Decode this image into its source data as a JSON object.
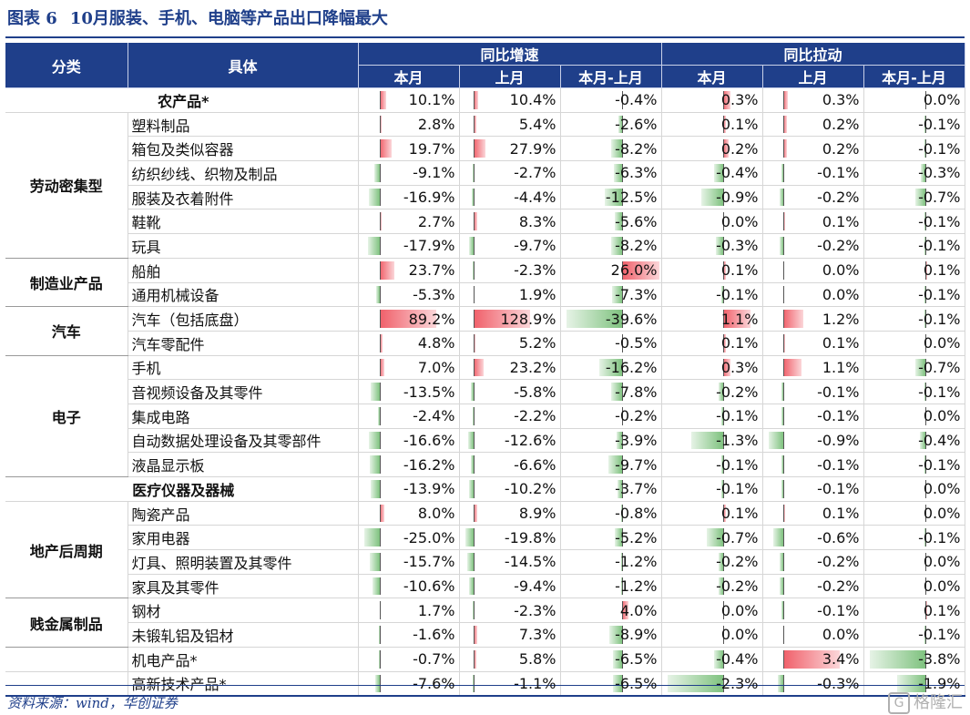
{
  "title": {
    "label": "图表 6",
    "text": "10月服装、手机、电脑等产品出口降幅最大"
  },
  "header": {
    "col_category": "分类",
    "col_item": "具体",
    "group_yoy": "同比增速",
    "group_pull": "同比拉动",
    "sub": [
      "本月",
      "上月",
      "本月-上月",
      "本月",
      "上月",
      "本月-上月"
    ]
  },
  "rows": [
    {
      "cat": "农产品*",
      "item": "",
      "vals": [
        "10.1%",
        "10.4%",
        "-0.4%",
        "0.3%",
        "0.3%",
        "0.0%"
      ]
    },
    {
      "cat": "劳动密集型",
      "item": "塑料制品",
      "vals": [
        "2.8%",
        "5.4%",
        "-2.6%",
        "0.1%",
        "0.2%",
        "-0.1%"
      ]
    },
    {
      "cat": "",
      "item": "箱包及类似容器",
      "vals": [
        "19.7%",
        "27.9%",
        "-8.2%",
        "0.2%",
        "0.2%",
        "-0.1%"
      ]
    },
    {
      "cat": "",
      "item": "纺织纱线、织物及制品",
      "vals": [
        "-9.1%",
        "-2.7%",
        "-6.3%",
        "-0.4%",
        "-0.1%",
        "-0.3%"
      ]
    },
    {
      "cat": "",
      "item": "服装及衣着附件",
      "vals": [
        "-16.9%",
        "-4.4%",
        "-12.5%",
        "-0.9%",
        "-0.2%",
        "-0.7%"
      ]
    },
    {
      "cat": "",
      "item": "鞋靴",
      "vals": [
        "2.7%",
        "8.3%",
        "-5.6%",
        "0.0%",
        "0.1%",
        "-0.1%"
      ]
    },
    {
      "cat": "",
      "item": "玩具",
      "vals": [
        "-17.9%",
        "-9.7%",
        "-8.2%",
        "-0.3%",
        "-0.2%",
        "-0.1%"
      ]
    },
    {
      "cat": "制造业产品",
      "item": "船舶",
      "vals": [
        "23.7%",
        "-2.3%",
        "26.0%",
        "0.1%",
        "0.0%",
        "0.1%"
      ]
    },
    {
      "cat": "",
      "item": "通用机械设备",
      "vals": [
        "-5.3%",
        "1.9%",
        "-7.3%",
        "-0.1%",
        "0.0%",
        "-0.1%"
      ]
    },
    {
      "cat": "汽车",
      "item": "汽车（包括底盘）",
      "vals": [
        "89.2%",
        "128.9%",
        "-39.6%",
        "1.1%",
        "1.2%",
        "-0.1%"
      ]
    },
    {
      "cat": "",
      "item": "汽车零配件",
      "vals": [
        "4.8%",
        "5.2%",
        "-0.5%",
        "0.1%",
        "0.1%",
        "0.0%"
      ]
    },
    {
      "cat": "电子",
      "item": "手机",
      "vals": [
        "7.0%",
        "23.2%",
        "-16.2%",
        "0.3%",
        "1.1%",
        "-0.7%"
      ]
    },
    {
      "cat": "",
      "item": "音视频设备及其零件",
      "vals": [
        "-13.5%",
        "-5.8%",
        "-7.8%",
        "-0.2%",
        "-0.1%",
        "-0.1%"
      ]
    },
    {
      "cat": "",
      "item": "集成电路",
      "vals": [
        "-2.4%",
        "-2.2%",
        "-0.2%",
        "-0.1%",
        "-0.1%",
        "0.0%"
      ]
    },
    {
      "cat": "",
      "item": "自动数据处理设备及其零部件",
      "vals": [
        "-16.6%",
        "-12.6%",
        "-3.9%",
        "-1.3%",
        "-0.9%",
        "-0.4%"
      ]
    },
    {
      "cat": "",
      "item": "液晶显示板",
      "vals": [
        "-16.2%",
        "-6.6%",
        "-9.7%",
        "-0.1%",
        "-0.1%",
        "-0.1%"
      ]
    },
    {
      "cat": "医疗仪器及器械",
      "item": "",
      "vals": [
        "-13.9%",
        "-10.2%",
        "-3.7%",
        "-0.1%",
        "-0.1%",
        "0.0%"
      ]
    },
    {
      "cat": "地产后周期",
      "item": "陶瓷产品",
      "vals": [
        "8.0%",
        "8.9%",
        "-0.8%",
        "0.1%",
        "0.1%",
        "0.0%"
      ]
    },
    {
      "cat": "",
      "item": "家用电器",
      "vals": [
        "-25.0%",
        "-19.8%",
        "-5.2%",
        "-0.7%",
        "-0.6%",
        "-0.1%"
      ]
    },
    {
      "cat": "",
      "item": "灯具、照明装置及其零件",
      "vals": [
        "-15.7%",
        "-14.5%",
        "-1.2%",
        "-0.2%",
        "-0.2%",
        "0.0%"
      ]
    },
    {
      "cat": "",
      "item": "家具及其零件",
      "vals": [
        "-10.6%",
        "-9.4%",
        "-1.2%",
        "-0.2%",
        "-0.2%",
        "0.0%"
      ]
    },
    {
      "cat": "贱金属制品",
      "item": "钢材",
      "vals": [
        "1.7%",
        "-2.3%",
        "4.0%",
        "0.0%",
        "-0.1%",
        "0.1%"
      ]
    },
    {
      "cat": "",
      "item": "未锻轧铝及铝材",
      "vals": [
        "-1.6%",
        "7.3%",
        "-8.9%",
        "0.0%",
        "0.0%",
        "-0.1%"
      ]
    },
    {
      "cat": "",
      "item": "机电产品*",
      "vals": [
        "-0.7%",
        "5.8%",
        "-6.5%",
        "-0.4%",
        "3.4%",
        "-3.8%"
      ]
    },
    {
      "cat": "",
      "item": "高新技术产品*",
      "vals": [
        "-7.6%",
        "-1.1%",
        "-6.5%",
        "-2.3%",
        "-0.3%",
        "-1.9%"
      ]
    }
  ],
  "bar_colors": {
    "positive": "#f0606a",
    "negative": "#7fc27f",
    "axis": "#555555"
  },
  "footer": {
    "source": "资料来源：wind，华创证券",
    "watermark": "格隆汇",
    "watermark_icon": "G-logo-icon"
  }
}
